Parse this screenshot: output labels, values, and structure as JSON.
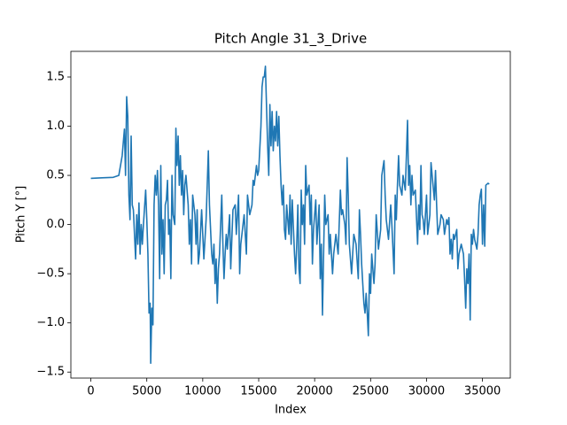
{
  "chart_data": {
    "type": "line",
    "title": "Pitch Angle  31_3_Drive",
    "x_label": "Index",
    "y_label": "Pitch Y [°]",
    "color": "#1f77b4",
    "grid": false,
    "xlim": [
      -1785,
      37485
    ],
    "ylim": [
      -1.561,
      1.761
    ],
    "xticks": [
      0,
      5000,
      10000,
      15000,
      20000,
      25000,
      30000,
      35000
    ],
    "yticks": [
      {
        "value": -1.5,
        "label": "−1.5"
      },
      {
        "value": -1.0,
        "label": "−1.0"
      },
      {
        "value": -0.5,
        "label": "−0.5"
      },
      {
        "value": 0.0,
        "label": "0.0"
      },
      0.5,
      {
        "value": 1.0,
        "label": "1.0"
      },
      1.5
    ],
    "x": [
      0,
      1000,
      2000,
      2500,
      2800,
      3000,
      3100,
      3200,
      3300,
      3400,
      3500,
      3600,
      3700,
      3800,
      4000,
      4100,
      4200,
      4300,
      4400,
      4500,
      4600,
      4700,
      4900,
      5000,
      5100,
      5200,
      5300,
      5350,
      5450,
      5550,
      5650,
      5750,
      5850,
      5950,
      6050,
      6150,
      6250,
      6350,
      6450,
      6550,
      6650,
      6750,
      6850,
      6950,
      7050,
      7150,
      7250,
      7350,
      7500,
      7600,
      7700,
      7800,
      7900,
      8000,
      8100,
      8200,
      8300,
      8400,
      8500,
      8700,
      8800,
      8900,
      9000,
      9100,
      9300,
      9400,
      9500,
      9600,
      9700,
      9900,
      10000,
      10100,
      10300,
      10500,
      10600,
      10800,
      10900,
      11000,
      11100,
      11200,
      11300,
      11400,
      11500,
      11700,
      11800,
      11900,
      12000,
      12100,
      12200,
      12400,
      12500,
      12700,
      12900,
      13000,
      13200,
      13300,
      13400,
      13600,
      13700,
      13900,
      14000,
      14200,
      14400,
      14500,
      14600,
      14800,
      14900,
      15000,
      15200,
      15300,
      15400,
      15500,
      15600,
      15700,
      15800,
      15900,
      16000,
      16100,
      16200,
      16300,
      16400,
      16500,
      16600,
      16700,
      16800,
      16900,
      17000,
      17100,
      17200,
      17300,
      17400,
      17500,
      17700,
      17800,
      17900,
      18000,
      18200,
      18300,
      18400,
      18500,
      18600,
      18700,
      18800,
      18900,
      19000,
      19100,
      19200,
      19300,
      19500,
      19600,
      19700,
      19800,
      19900,
      20100,
      20200,
      20400,
      20500,
      20600,
      20700,
      20800,
      20900,
      21000,
      21200,
      21300,
      21400,
      21600,
      21700,
      21900,
      22100,
      22300,
      22400,
      22500,
      22700,
      22800,
      22900,
      23000,
      23100,
      23300,
      23500,
      23700,
      23900,
      24000,
      24100,
      24200,
      24400,
      24500,
      24600,
      24700,
      24800,
      24900,
      25000,
      25100,
      25300,
      25400,
      25500,
      25700,
      25900,
      26000,
      26200,
      26300,
      26400,
      26600,
      26800,
      26900,
      27100,
      27200,
      27300,
      27400,
      27500,
      27600,
      27800,
      27900,
      28100,
      28200,
      28300,
      28400,
      28500,
      28600,
      28700,
      28800,
      29000,
      29200,
      29300,
      29400,
      29500,
      29600,
      29700,
      29800,
      30000,
      30100,
      30300,
      30400,
      30500,
      30700,
      30800,
      30900,
      31000,
      31200,
      31300,
      31500,
      31600,
      31800,
      31900,
      32000,
      32100,
      32200,
      32300,
      32400,
      32500,
      32700,
      32800,
      32900,
      33100,
      33300,
      33400,
      33500,
      33600,
      33700,
      33800,
      33900,
      34000,
      34100,
      34200,
      34300,
      34500,
      34600,
      34700,
      34800,
      34900,
      35000,
      35100,
      35200,
      35300,
      35500,
      35600
    ],
    "values": [
      0.47,
      0.475,
      0.48,
      0.5,
      0.7,
      0.97,
      0.5,
      1.3,
      1.1,
      0.3,
      0.05,
      0.9,
      0.2,
      0.15,
      -0.35,
      0.1,
      -0.2,
      0.22,
      -0.3,
      0.0,
      -0.2,
      0.0,
      0.35,
      0.05,
      -0.3,
      -0.9,
      -0.8,
      -1.41,
      -0.85,
      -1.02,
      0.2,
      0.5,
      0.3,
      0.55,
      0.2,
      -0.55,
      0.6,
      -0.3,
      0.05,
      -0.5,
      0.2,
      0.25,
      0.45,
      -0.1,
      0.05,
      -0.55,
      0.5,
      0.1,
      0.0,
      0.98,
      0.6,
      0.9,
      0.4,
      0.7,
      0.3,
      0.55,
      0.1,
      0.4,
      0.5,
      0.2,
      -0.2,
      0.05,
      -0.4,
      0.3,
      0.1,
      -0.2,
      0.15,
      -0.4,
      -0.3,
      0.15,
      -0.1,
      -0.35,
      0.05,
      0.75,
      0.2,
      -0.3,
      -0.4,
      -0.2,
      -0.6,
      -0.35,
      -0.8,
      -0.45,
      -0.3,
      0.3,
      -0.2,
      -0.55,
      -0.3,
      -0.1,
      -0.25,
      0.1,
      -0.45,
      0.15,
      0.2,
      -0.1,
      0.3,
      -0.5,
      -0.2,
      0.0,
      0.1,
      -0.3,
      0.3,
      0.1,
      0.2,
      0.45,
      0.4,
      0.6,
      0.5,
      0.55,
      1.0,
      1.4,
      1.5,
      1.5,
      1.61,
      1.2,
      0.8,
      0.5,
      1.22,
      0.8,
      1.15,
      0.75,
      1.0,
      0.85,
      1.15,
      0.8,
      1.1,
      0.7,
      0.4,
      0.2,
      0.4,
      -0.05,
      -0.15,
      0.2,
      -0.1,
      0.3,
      -0.2,
      0.25,
      -0.3,
      -0.5,
      -0.2,
      0.2,
      -0.45,
      -0.6,
      0.35,
      0.0,
      0.2,
      -0.2,
      0.6,
      0.3,
      0.4,
      0.0,
      0.3,
      -0.4,
      -0.05,
      0.25,
      -0.2,
      0.2,
      -0.55,
      -0.2,
      -0.92,
      -0.3,
      0.3,
      0.0,
      0.1,
      -0.3,
      -0.1,
      -0.5,
      -0.3,
      -0.1,
      -0.3,
      0.35,
      0.1,
      0.15,
      0.0,
      -0.2,
      0.68,
      0.3,
      -0.2,
      -0.5,
      -0.1,
      -0.2,
      -0.55,
      0.15,
      -0.1,
      -0.4,
      -0.8,
      -0.9,
      -0.7,
      -0.9,
      -1.13,
      -0.5,
      -0.7,
      -0.3,
      -0.6,
      -0.4,
      0.1,
      -0.25,
      -0.05,
      0.5,
      0.65,
      0.3,
      0.05,
      -0.15,
      0.2,
      0.0,
      -0.5,
      0.3,
      0.05,
      0.4,
      0.7,
      0.4,
      0.3,
      0.5,
      0.35,
      0.7,
      1.06,
      0.4,
      0.6,
      0.2,
      0.5,
      0.3,
      0.35,
      -0.2,
      0.2,
      -0.05,
      0.6,
      0.1,
      0.05,
      -0.1,
      0.3,
      -0.1,
      0.1,
      0.63,
      0.5,
      0.25,
      0.55,
      0.2,
      -0.1,
      0.0,
      0.1,
      0.05,
      -0.1,
      0.05,
      0.0,
      0.07,
      -0.3,
      -0.15,
      -0.35,
      -0.1,
      -0.15,
      -0.05,
      -0.45,
      -0.3,
      -0.2,
      -0.3,
      -0.55,
      -0.85,
      -0.45,
      -0.6,
      -0.3,
      -0.97,
      -0.1,
      -0.2,
      -0.05,
      -0.15,
      -0.25,
      -0.1,
      0.2,
      0.3,
      0.36,
      -0.2,
      0.2,
      -0.22,
      0.4,
      0.42,
      0.41
    ]
  }
}
